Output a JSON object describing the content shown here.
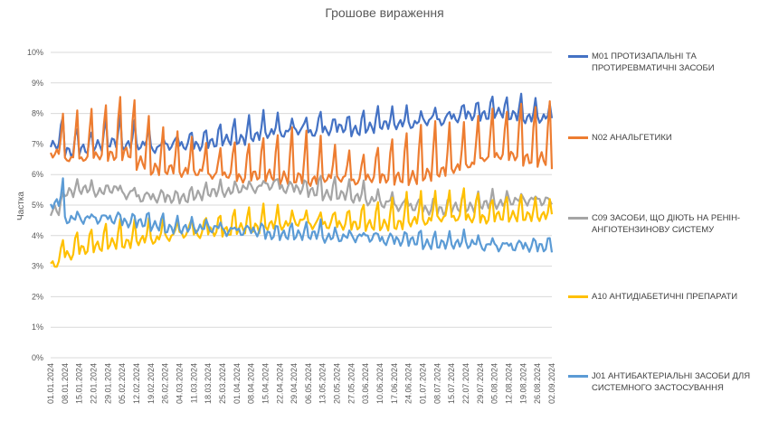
{
  "chart_data": {
    "type": "line",
    "title": "Грошове вираження",
    "ylabel": "Частка",
    "xlabel": "",
    "ylim": [
      0,
      0.1
    ],
    "yticks": [
      0,
      0.01,
      0.02,
      0.03,
      0.04,
      0.05,
      0.06,
      0.07,
      0.08,
      0.09,
      0.1
    ],
    "ytick_labels": [
      "0%",
      "1%",
      "2%",
      "3%",
      "4%",
      "5%",
      "6%",
      "7%",
      "8%",
      "9%",
      "10%"
    ],
    "x_start": "2024-01-01",
    "x_end": "2024-09-02",
    "xtick_labels": [
      "01.01.2024",
      "08.01.2024",
      "15.01.2024",
      "22.01.2024",
      "29.01.2024",
      "05.02.2024",
      "12.02.2024",
      "19.02.2024",
      "26.02.2024",
      "04.03.2024",
      "11.03.2024",
      "18.03.2024",
      "25.03.2024",
      "01.04.2024",
      "08.04.2024",
      "15.04.2024",
      "22.04.2024",
      "29.04.2024",
      "06.05.2024",
      "13.05.2024",
      "20.05.2024",
      "27.05.2024",
      "03.06.2024",
      "10.06.2024",
      "17.06.2024",
      "24.06.2024",
      "01.07.2024",
      "08.07.2024",
      "15.07.2024",
      "22.07.2024",
      "29.07.2024",
      "05.08.2024",
      "12.08.2024",
      "19.08.2024",
      "26.08.2024",
      "02.09.2024"
    ],
    "grid": true,
    "legend_position": "right",
    "series": [
      {
        "name": "M01 ПРОТИЗАПАЛЬНІ ТА ПРОТИРЕВМАТИЧНІ ЗАСОБИ",
        "color": "#4472C4",
        "weekly_values": [
          0.069,
          0.067,
          0.068,
          0.069,
          0.07,
          0.069,
          0.069,
          0.068,
          0.069,
          0.069,
          0.069,
          0.07,
          0.071,
          0.071,
          0.072,
          0.073,
          0.073,
          0.074,
          0.073,
          0.074,
          0.075,
          0.074,
          0.075,
          0.076,
          0.076,
          0.076,
          0.077,
          0.077,
          0.078,
          0.079,
          0.079,
          0.08,
          0.079,
          0.078,
          0.078,
          0.077
        ],
        "weekly_peaks": [
          0.08,
          0.075,
          0.073,
          0.077,
          0.078,
          0.077,
          0.076,
          0.073,
          0.074,
          0.075,
          0.075,
          0.076,
          0.077,
          0.078,
          0.08,
          0.08,
          0.079,
          0.08,
          0.082,
          0.079,
          0.079,
          0.08,
          0.081,
          0.081,
          0.082,
          0.081,
          0.083,
          0.082,
          0.084,
          0.084,
          0.085,
          0.084,
          0.085,
          0.084,
          0.083,
          0.079
        ]
      },
      {
        "name": "N02 АНАЛЬГЕТИКИ",
        "color": "#ED7D31",
        "weekly_values": [
          0.066,
          0.064,
          0.064,
          0.065,
          0.065,
          0.066,
          0.063,
          0.061,
          0.061,
          0.06,
          0.06,
          0.059,
          0.059,
          0.058,
          0.059,
          0.059,
          0.058,
          0.058,
          0.057,
          0.058,
          0.058,
          0.057,
          0.058,
          0.058,
          0.058,
          0.058,
          0.059,
          0.06,
          0.061,
          0.062,
          0.064,
          0.065,
          0.065,
          0.064,
          0.064,
          0.063
        ],
        "weekly_peaks": [
          0.08,
          0.082,
          0.083,
          0.084,
          0.086,
          0.084,
          0.078,
          0.074,
          0.073,
          0.072,
          0.071,
          0.07,
          0.072,
          0.071,
          0.072,
          0.072,
          0.074,
          0.073,
          0.072,
          0.07,
          0.069,
          0.068,
          0.07,
          0.072,
          0.073,
          0.075,
          0.076,
          0.076,
          0.077,
          0.08,
          0.083,
          0.082,
          0.084,
          0.082,
          0.083,
          0.075
        ]
      },
      {
        "name": "C09 ЗАСОБИ, ЩО ДІЮТЬ НА РЕНІН-АНГІОТЕНЗИНОВУ СИСТЕМУ",
        "color": "#A5A5A5",
        "weekly_values": [
          0.048,
          0.054,
          0.055,
          0.054,
          0.055,
          0.053,
          0.052,
          0.052,
          0.052,
          0.052,
          0.053,
          0.054,
          0.054,
          0.055,
          0.055,
          0.056,
          0.055,
          0.055,
          0.054,
          0.053,
          0.053,
          0.052,
          0.051,
          0.05,
          0.049,
          0.049,
          0.048,
          0.048,
          0.049,
          0.049,
          0.05,
          0.05,
          0.051,
          0.051,
          0.051,
          0.05
        ],
        "weekly_peaks": [
          0.053,
          0.057,
          0.057,
          0.056,
          0.057,
          0.057,
          0.055,
          0.055,
          0.054,
          0.055,
          0.056,
          0.057,
          0.057,
          0.058,
          0.059,
          0.06,
          0.058,
          0.058,
          0.059,
          0.058,
          0.057,
          0.057,
          0.055,
          0.055,
          0.054,
          0.053,
          0.053,
          0.052,
          0.053,
          0.053,
          0.054,
          0.054,
          0.054,
          0.054,
          0.053,
          0.053
        ]
      },
      {
        "name": "A10 АНТИДІАБЕТИЧНІ ПРЕПАРАТИ",
        "color": "#FFC000",
        "weekly_values": [
          0.03,
          0.033,
          0.035,
          0.036,
          0.037,
          0.037,
          0.038,
          0.038,
          0.039,
          0.04,
          0.04,
          0.041,
          0.041,
          0.042,
          0.042,
          0.043,
          0.043,
          0.044,
          0.043,
          0.043,
          0.043,
          0.043,
          0.043,
          0.043,
          0.043,
          0.044,
          0.044,
          0.045,
          0.045,
          0.045,
          0.045,
          0.046,
          0.046,
          0.046,
          0.046,
          0.046
        ],
        "weekly_peaks": [
          0.04,
          0.042,
          0.042,
          0.043,
          0.044,
          0.044,
          0.045,
          0.046,
          0.046,
          0.047,
          0.047,
          0.047,
          0.048,
          0.048,
          0.049,
          0.049,
          0.048,
          0.049,
          0.049,
          0.049,
          0.049,
          0.05,
          0.05,
          0.051,
          0.053,
          0.054,
          0.055,
          0.056,
          0.057,
          0.055,
          0.052,
          0.052,
          0.052,
          0.051,
          0.051,
          0.05
        ]
      },
      {
        "name": "J01 АНТИБАКТЕРІАЛЬНІ ЗАСОБИ ДЛЯ СИСТЕМНОГО ЗАСТОСУВАННЯ",
        "color": "#5B9BD5",
        "weekly_values": [
          0.05,
          0.045,
          0.045,
          0.045,
          0.045,
          0.044,
          0.044,
          0.043,
          0.042,
          0.042,
          0.042,
          0.042,
          0.041,
          0.041,
          0.041,
          0.04,
          0.04,
          0.04,
          0.04,
          0.039,
          0.039,
          0.039,
          0.039,
          0.038,
          0.038,
          0.038,
          0.037,
          0.037,
          0.037,
          0.037,
          0.036,
          0.036,
          0.036,
          0.036,
          0.036,
          0.036
        ],
        "weekly_peaks": [
          0.058,
          0.048,
          0.048,
          0.048,
          0.048,
          0.047,
          0.047,
          0.046,
          0.045,
          0.045,
          0.045,
          0.045,
          0.044,
          0.044,
          0.044,
          0.043,
          0.043,
          0.043,
          0.044,
          0.042,
          0.042,
          0.042,
          0.042,
          0.041,
          0.041,
          0.041,
          0.04,
          0.04,
          0.041,
          0.04,
          0.04,
          0.039,
          0.039,
          0.039,
          0.039,
          0.038
        ]
      }
    ]
  }
}
